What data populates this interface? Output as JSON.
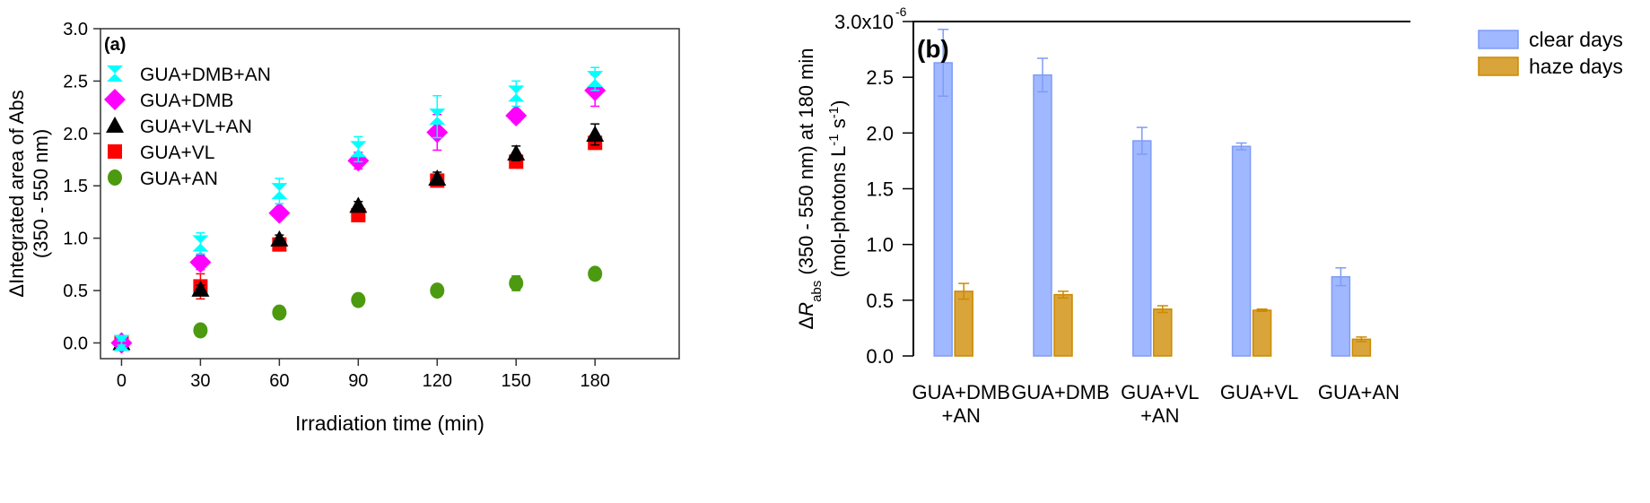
{
  "chart_data": [
    {
      "type": "scatter",
      "panel_label": "(a)",
      "xlabel": "Irradiation time (min)",
      "ylabel_line1": "ΔIntegrated area of Abs",
      "ylabel_line2": "(350 - 550 nm)",
      "xlim": [
        -8,
        212
      ],
      "ylim": [
        -0.15,
        3.0
      ],
      "xticks": [
        0,
        30,
        60,
        90,
        120,
        150,
        180
      ],
      "yticks": [
        0.0,
        0.5,
        1.0,
        1.5,
        2.0,
        2.5,
        3.0
      ],
      "ytick_labels": [
        "0.0",
        "0.5",
        "1.0",
        "1.5",
        "2.0",
        "2.5",
        "3.0"
      ],
      "x": [
        0,
        30,
        60,
        90,
        120,
        150,
        180
      ],
      "legend_position": "top-left",
      "series": [
        {
          "name": "GUA+DMB+AN",
          "marker": "hourglass",
          "color": "#00ffff",
          "values": [
            0,
            0.95,
            1.45,
            1.85,
            2.16,
            2.38,
            2.52
          ],
          "errors": [
            0.02,
            0.1,
            0.12,
            0.12,
            0.2,
            0.12,
            0.11
          ]
        },
        {
          "name": "GUA+DMB",
          "marker": "diamond",
          "color": "#ff00ff",
          "values": [
            0,
            0.77,
            1.24,
            1.74,
            2.01,
            2.17,
            2.41
          ],
          "errors": [
            0.02,
            0.07,
            0.04,
            0.08,
            0.17,
            0.06,
            0.15
          ]
        },
        {
          "name": "GUA+VL+AN",
          "marker": "triangle",
          "color": "#000000",
          "values": [
            0,
            0.51,
            0.99,
            1.31,
            1.57,
            1.81,
            1.99
          ],
          "errors": [
            0.02,
            0.04,
            0.04,
            0.04,
            0.06,
            0.07,
            0.1
          ]
        },
        {
          "name": "GUA+VL",
          "marker": "square",
          "color": "#ff0000",
          "values": [
            0,
            0.54,
            0.94,
            1.22,
            1.55,
            1.73,
            1.91
          ],
          "errors": [
            0.02,
            0.12,
            0.03,
            0.03,
            0.04,
            0.03,
            0.05
          ]
        },
        {
          "name": "GUA+AN",
          "marker": "circle",
          "color": "#4c9a0f",
          "values": [
            0,
            0.12,
            0.29,
            0.41,
            0.5,
            0.57,
            0.66
          ],
          "errors": [
            0.02,
            0.05,
            0.01,
            0.01,
            0.01,
            0.07,
            0.01
          ]
        }
      ]
    },
    {
      "type": "bar",
      "panel_label": "(b)",
      "ylabel_pre": "Δ",
      "ylabel_R": "R",
      "ylabel_sub": "abs",
      "ylabel_rest": " (350 - 550 nm) at 180 min",
      "ylabel_line2a": "(mol-photons L",
      "ylabel_sup1": "-1",
      "ylabel_line2b": " s",
      "ylabel_sup2": "-1",
      "ylabel_line2c": ")",
      "ylim": [
        0,
        3.0
      ],
      "yticks": [
        0.0,
        0.5,
        1.0,
        1.5,
        2.0,
        2.5,
        3.0
      ],
      "ytick_labels": [
        "0.0",
        "0.5",
        "1.0",
        "1.5",
        "2.0",
        "2.5",
        "3.0x10"
      ],
      "ytick_top_exp": "-6",
      "categories": [
        [
          "GUA+DMB",
          "+AN"
        ],
        [
          "GUA+DMB",
          ""
        ],
        [
          "GUA+VL",
          "+AN"
        ],
        [
          "GUA+VL",
          ""
        ],
        [
          "GUA+AN",
          ""
        ]
      ],
      "legend_position": "top-right",
      "series": [
        {
          "name": "clear days",
          "color": "#a0b8ff",
          "edge": "#7f9cf5",
          "values": [
            2.63,
            2.52,
            1.93,
            1.88,
            0.71
          ],
          "errors": [
            0.3,
            0.15,
            0.12,
            0.03,
            0.08
          ]
        },
        {
          "name": "haze days",
          "color": "#d9a43a",
          "edge": "#cc8a00",
          "values": [
            0.58,
            0.55,
            0.42,
            0.41,
            0.15
          ],
          "errors": [
            0.07,
            0.03,
            0.03,
            0.01,
            0.02
          ]
        }
      ]
    }
  ]
}
